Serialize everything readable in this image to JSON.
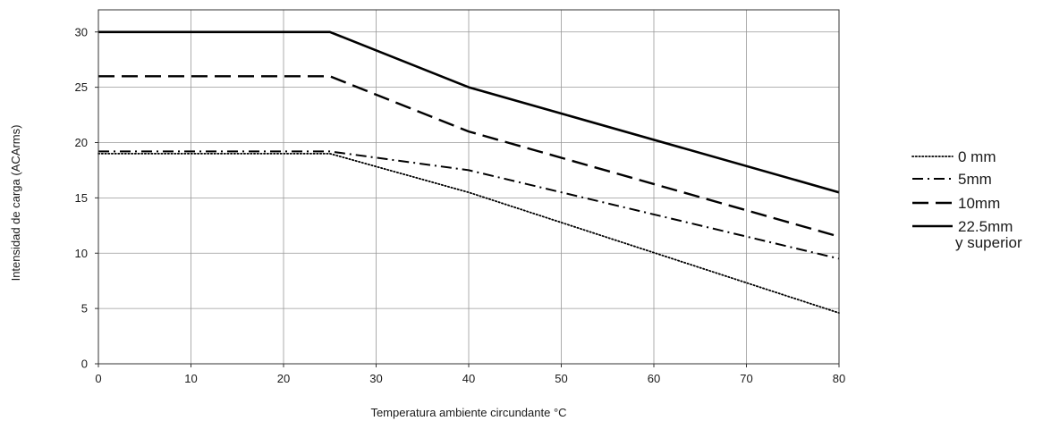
{
  "chart_data": {
    "type": "line",
    "xlabel": "Temperatura ambiente circundante °C",
    "ylabel": "Intensidad de carga (ACArms)",
    "xlim": [
      0,
      80
    ],
    "ylim": [
      0,
      32
    ],
    "xticks": [
      0,
      10,
      20,
      30,
      40,
      50,
      60,
      70,
      80
    ],
    "yticks": [
      0,
      5,
      10,
      15,
      20,
      25,
      30
    ],
    "grid": true,
    "legend_position": "right",
    "series": [
      {
        "name": "0 mm",
        "style": "dotted",
        "x": [
          0,
          25,
          40,
          80
        ],
        "y": [
          19.0,
          19.0,
          15.5,
          4.6
        ]
      },
      {
        "name": "5mm",
        "style": "dash-dot",
        "x": [
          0,
          25,
          40,
          80
        ],
        "y": [
          19.2,
          19.2,
          17.5,
          9.5
        ]
      },
      {
        "name": "10mm",
        "style": "dashed",
        "x": [
          0,
          25,
          40,
          80
        ],
        "y": [
          26.0,
          26.0,
          21.0,
          11.5
        ]
      },
      {
        "name": "22.5mm",
        "name_line2": "y superior",
        "style": "solid",
        "x": [
          0,
          25,
          40,
          80
        ],
        "y": [
          30.0,
          30.0,
          25.0,
          15.5
        ]
      }
    ]
  },
  "colors": {
    "line": "#000000",
    "grid": "#999999",
    "frame": "#333333"
  }
}
